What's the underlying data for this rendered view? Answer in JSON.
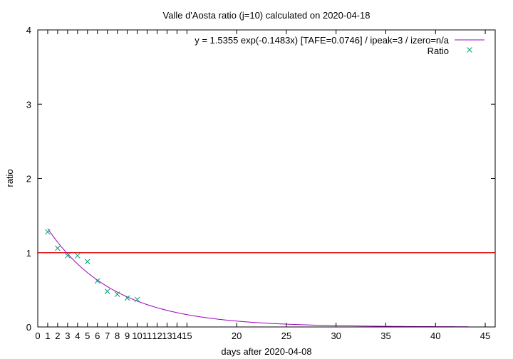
{
  "chart_data": {
    "type": "scatter",
    "title": "Valle d'Aosta ratio (j=10) calculated on 2020-04-18",
    "xlabel": "days after 2020-04-08",
    "ylabel": "ratio",
    "xlim": [
      0,
      46
    ],
    "ylim": [
      0,
      4
    ],
    "x_ticks": [
      0,
      1,
      2,
      3,
      4,
      5,
      6,
      7,
      8,
      9,
      10,
      11,
      12,
      13,
      14,
      15,
      20,
      25,
      30,
      35,
      40,
      45
    ],
    "y_ticks": [
      0,
      1,
      2,
      3,
      4
    ],
    "legend_position": "top-right",
    "series": [
      {
        "name": "y = 1.5355 exp(-0.1483x)  [TAFE=0.0746] / ipeak=3 / izero=n/a",
        "kind": "fit-curve",
        "color": "#a000c0",
        "model": {
          "a": 1.5355,
          "b": -0.1483,
          "x_start": 1,
          "x_end": 43.3
        }
      },
      {
        "name": "Ratio",
        "kind": "points",
        "color": "#009e73",
        "x": [
          1,
          2,
          3,
          4,
          5,
          6,
          7,
          8,
          9,
          10
        ],
        "y": [
          1.28,
          1.06,
          0.96,
          0.96,
          0.88,
          0.62,
          0.48,
          0.44,
          0.39,
          0.37
        ]
      },
      {
        "name": "",
        "kind": "reference-line",
        "color": "#e41a1c",
        "y": 1
      }
    ]
  }
}
